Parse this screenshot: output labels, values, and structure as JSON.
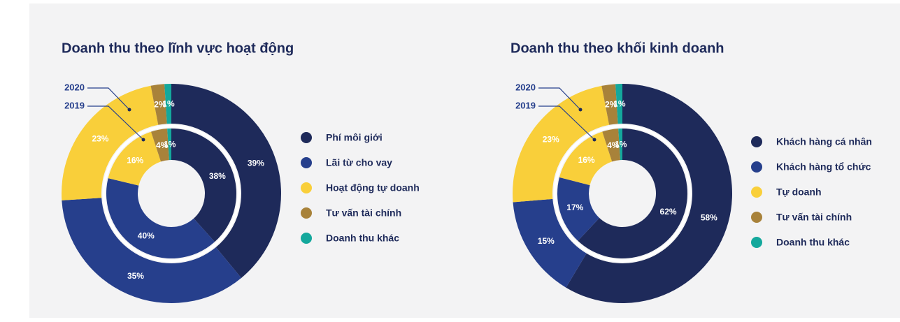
{
  "chart_data": [
    {
      "type": "pie",
      "title": "Doanh thu theo lĩnh vực hoạt động",
      "categories": [
        "Phí môi giới",
        "Lãi từ cho vay",
        "Hoạt động tự doanh",
        "Tư vấn tài chính",
        "Doanh thu khác"
      ],
      "colors": [
        "#1e2a5a",
        "#263f8c",
        "#f9cf3a",
        "#a8823a",
        "#14a89c"
      ],
      "series": [
        {
          "name": "2020",
          "values": [
            39,
            35,
            23,
            2,
            1
          ],
          "value_labels": [
            "39%",
            "35%",
            "23%",
            "2%",
            "1%"
          ]
        },
        {
          "name": "2019",
          "values": [
            38,
            40,
            16,
            4,
            1
          ],
          "value_labels": [
            "38%",
            "40%",
            "16%",
            "4%",
            "1%"
          ]
        }
      ]
    },
    {
      "type": "pie",
      "title": "Doanh thu theo khối kinh doanh",
      "categories": [
        "Khách hàng cá nhân",
        "Khách hàng tổ chức",
        "Tự doanh",
        "Tư vấn tài chính",
        "Doanh thu khác"
      ],
      "colors": [
        "#1e2a5a",
        "#263f8c",
        "#f9cf3a",
        "#a8823a",
        "#14a89c"
      ],
      "series": [
        {
          "name": "2020",
          "values": [
            58,
            15,
            23,
            2,
            1
          ],
          "value_labels": [
            "58%",
            "15%",
            "23%",
            "2%",
            "1%"
          ]
        },
        {
          "name": "2019",
          "values": [
            62,
            17,
            16,
            4,
            1
          ],
          "value_labels": [
            "62%",
            "17%",
            "16%",
            "4%",
            "1%"
          ]
        }
      ]
    }
  ]
}
